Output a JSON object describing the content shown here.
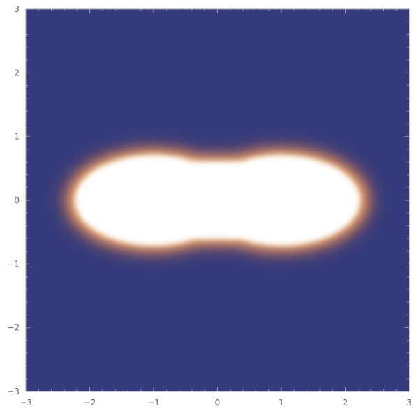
{
  "chart_data": {
    "type": "heatmap",
    "title": "",
    "xlabel": "",
    "ylabel": "",
    "xlim": [
      -3,
      3
    ],
    "ylim": [
      -3,
      3
    ],
    "x_ticks": [
      {
        "value": -3,
        "label": "−3"
      },
      {
        "value": -2,
        "label": "−2"
      },
      {
        "value": -1,
        "label": "−1"
      },
      {
        "value": 0,
        "label": "0"
      },
      {
        "value": 1,
        "label": "1"
      },
      {
        "value": 2,
        "label": "2"
      },
      {
        "value": 3,
        "label": "3"
      }
    ],
    "y_ticks": [
      {
        "value": 3,
        "label": "3"
      },
      {
        "value": 2,
        "label": "2"
      },
      {
        "value": 1,
        "label": "1"
      },
      {
        "value": 0,
        "label": "0"
      },
      {
        "value": -1,
        "label": "−1"
      },
      {
        "value": -2,
        "label": "−2"
      },
      {
        "value": -3,
        "label": "−3"
      }
    ],
    "grid": false,
    "legend": "none",
    "colors": {
      "background": "#353b7c",
      "glow_mid": "#d76a3a",
      "glow_light": "#f6c78a",
      "core": "#ffffff",
      "frame": "#999999"
    },
    "shape": {
      "description_free": true,
      "lobe_centers": [
        [
          -1.0,
          0
        ],
        [
          1.0,
          0
        ]
      ],
      "lobe_radius_x": 1.25,
      "lobe_radius_y": 0.72,
      "x_extent": [
        -2.25,
        2.25
      ],
      "waist_half_height": 0.62
    }
  }
}
